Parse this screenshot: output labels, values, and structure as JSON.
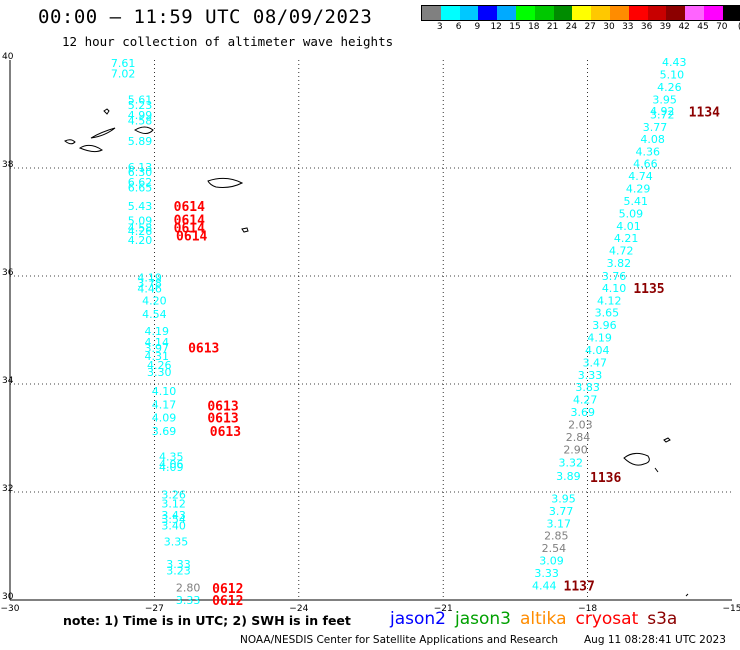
{
  "header": {
    "title": "00:00 – 11:59 UTC 08/09/2023",
    "subtitle": "12 hour collection of altimeter wave heights"
  },
  "color_scale": {
    "colors": [
      "#808080",
      "#00ffff",
      "#00c8ff",
      "#0000ff",
      "#00aaff",
      "#00ff00",
      "#00c800",
      "#008c00",
      "#ffff00",
      "#ffc800",
      "#ff8c00",
      "#ff0000",
      "#c80000",
      "#8c0000",
      "#ff64ff",
      "#ff00ff",
      "#000000"
    ],
    "labels": [
      "3",
      "6",
      "9",
      "12",
      "15",
      "18",
      "21",
      "24",
      "27",
      "30",
      "33",
      "36",
      "39",
      "42",
      "45",
      "70",
      "(ft)"
    ]
  },
  "map": {
    "lon_range": [
      -30,
      -15
    ],
    "lat_range": [
      30,
      40
    ],
    "lon_ticks": [
      "−30",
      "−27",
      "−24",
      "−21",
      "−18",
      "−15"
    ],
    "lat_ticks": [
      "40",
      "38",
      "36",
      "34",
      "32",
      "30"
    ],
    "track_west": [
      {
        "v": "7.61",
        "lon": -27.65,
        "lat": 39.94
      },
      {
        "v": "7.02",
        "lon": -27.65,
        "lat": 39.75
      },
      {
        "v": "5.61",
        "lon": -27.3,
        "lat": 39.27
      },
      {
        "v": "5.23",
        "lon": -27.3,
        "lat": 39.17
      },
      {
        "v": "4.99",
        "lon": -27.3,
        "lat": 38.98
      },
      {
        "v": "4.58",
        "lon": -27.3,
        "lat": 38.88
      },
      {
        "v": "5.89",
        "lon": -27.3,
        "lat": 38.5
      },
      {
        "v": "6.13",
        "lon": -27.3,
        "lat": 38.02
      },
      {
        "v": "6.30",
        "lon": -27.3,
        "lat": 37.93
      },
      {
        "v": "6.62",
        "lon": -27.3,
        "lat": 37.74
      },
      {
        "v": "6.65",
        "lon": -27.3,
        "lat": 37.64
      },
      {
        "v": "5.43",
        "lon": -27.3,
        "lat": 37.3
      },
      {
        "v": "5.09",
        "lon": -27.3,
        "lat": 37.03
      },
      {
        "v": "4.58",
        "lon": -27.3,
        "lat": 36.9
      },
      {
        "v": "4.26",
        "lon": -27.3,
        "lat": 36.83
      },
      {
        "v": "4.20",
        "lon": -27.3,
        "lat": 36.67
      },
      {
        "v": "4.19",
        "lon": -27.1,
        "lat": 35.97
      },
      {
        "v": "3.78",
        "lon": -27.1,
        "lat": 35.87
      },
      {
        "v": "4.46",
        "lon": -27.1,
        "lat": 35.77
      },
      {
        "v": "4.20",
        "lon": -27.0,
        "lat": 35.55
      },
      {
        "v": "4.54",
        "lon": -27.0,
        "lat": 35.3
      },
      {
        "v": "4.19",
        "lon": -26.95,
        "lat": 34.98
      },
      {
        "v": "4.14",
        "lon": -26.95,
        "lat": 34.78
      },
      {
        "v": "3.97",
        "lon": -26.95,
        "lat": 34.67
      },
      {
        "v": "4.31",
        "lon": -26.95,
        "lat": 34.52
      },
      {
        "v": "4.26",
        "lon": -26.9,
        "lat": 34.35
      },
      {
        "v": "3.30",
        "lon": -26.9,
        "lat": 34.22
      },
      {
        "v": "4.10",
        "lon": -26.8,
        "lat": 33.87
      },
      {
        "v": "4.17",
        "lon": -26.8,
        "lat": 33.62
      },
      {
        "v": "4.09",
        "lon": -26.8,
        "lat": 33.38
      },
      {
        "v": "3.69",
        "lon": -26.8,
        "lat": 33.13
      },
      {
        "v": "4.35",
        "lon": -26.65,
        "lat": 32.66
      },
      {
        "v": "4.06",
        "lon": -26.65,
        "lat": 32.52
      },
      {
        "v": "4.09",
        "lon": -26.65,
        "lat": 32.46
      },
      {
        "v": "3.26",
        "lon": -26.6,
        "lat": 31.95
      },
      {
        "v": "3.12",
        "lon": -26.6,
        "lat": 31.79
      },
      {
        "v": "3.43",
        "lon": -26.6,
        "lat": 31.57
      },
      {
        "v": "3.54",
        "lon": -26.6,
        "lat": 31.5
      },
      {
        "v": "3.40",
        "lon": -26.6,
        "lat": 31.38
      },
      {
        "v": "3.35",
        "lon": -26.55,
        "lat": 31.08
      },
      {
        "v": "3.33",
        "lon": -26.5,
        "lat": 30.67
      },
      {
        "v": "3.23",
        "lon": -26.5,
        "lat": 30.55
      },
      {
        "v": "3.33",
        "lon": -26.3,
        "lat": 30.0
      }
    ],
    "track_west_gray": [
      {
        "v": "2.80",
        "lon": -26.3,
        "lat": 30.23
      }
    ],
    "track_east": [
      {
        "v": "4.43",
        "lon": -16.2,
        "lat": 39.96
      },
      {
        "v": "5.10",
        "lon": -16.25,
        "lat": 39.73
      },
      {
        "v": "4.26",
        "lon": -16.3,
        "lat": 39.5
      },
      {
        "v": "3.95",
        "lon": -16.4,
        "lat": 39.27
      },
      {
        "v": "4.92",
        "lon": -16.45,
        "lat": 39.06
      },
      {
        "v": "3.72",
        "lon": -16.45,
        "lat": 38.99
      },
      {
        "v": "3.77",
        "lon": -16.6,
        "lat": 38.76
      },
      {
        "v": "4.08",
        "lon": -16.65,
        "lat": 38.54
      },
      {
        "v": "4.36",
        "lon": -16.75,
        "lat": 38.31
      },
      {
        "v": "4.66",
        "lon": -16.8,
        "lat": 38.08
      },
      {
        "v": "4.74",
        "lon": -16.9,
        "lat": 37.85
      },
      {
        "v": "4.29",
        "lon": -16.95,
        "lat": 37.62
      },
      {
        "v": "5.41",
        "lon": -17.0,
        "lat": 37.39
      },
      {
        "v": "5.09",
        "lon": -17.1,
        "lat": 37.16
      },
      {
        "v": "4.01",
        "lon": -17.15,
        "lat": 36.93
      },
      {
        "v": "4.21",
        "lon": -17.2,
        "lat": 36.7
      },
      {
        "v": "4.72",
        "lon": -17.3,
        "lat": 36.47
      },
      {
        "v": "3.82",
        "lon": -17.35,
        "lat": 36.24
      },
      {
        "v": "3.76",
        "lon": -17.45,
        "lat": 36.0
      },
      {
        "v": "4.10",
        "lon": -17.45,
        "lat": 35.78
      },
      {
        "v": "4.12",
        "lon": -17.55,
        "lat": 35.55
      },
      {
        "v": "3.65",
        "lon": -17.6,
        "lat": 35.32
      },
      {
        "v": "3.96",
        "lon": -17.65,
        "lat": 35.09
      },
      {
        "v": "4.19",
        "lon": -17.75,
        "lat": 34.86
      },
      {
        "v": "4.04",
        "lon": -17.8,
        "lat": 34.63
      },
      {
        "v": "3.47",
        "lon": -17.85,
        "lat": 34.4
      },
      {
        "v": "3.33",
        "lon": -17.95,
        "lat": 34.17
      },
      {
        "v": "3.83",
        "lon": -18.0,
        "lat": 33.94
      },
      {
        "v": "4.27",
        "lon": -18.05,
        "lat": 33.71
      },
      {
        "v": "3.69",
        "lon": -18.1,
        "lat": 33.48
      },
      {
        "v": "3.32",
        "lon": -18.35,
        "lat": 32.55
      },
      {
        "v": "3.89",
        "lon": -18.4,
        "lat": 32.3
      },
      {
        "v": "3.95",
        "lon": -18.5,
        "lat": 31.88
      },
      {
        "v": "3.77",
        "lon": -18.55,
        "lat": 31.65
      },
      {
        "v": "3.17",
        "lon": -18.6,
        "lat": 31.42
      },
      {
        "v": "3.09",
        "lon": -18.75,
        "lat": 30.73
      },
      {
        "v": "3.33",
        "lon": -18.85,
        "lat": 30.5
      },
      {
        "v": "4.44",
        "lon": -18.9,
        "lat": 30.27
      }
    ],
    "track_east_gray": [
      {
        "v": "2.03",
        "lon": -18.15,
        "lat": 33.25
      },
      {
        "v": "2.84",
        "lon": -18.2,
        "lat": 33.02
      },
      {
        "v": "2.90",
        "lon": -18.25,
        "lat": 32.79
      },
      {
        "v": "2.85",
        "lon": -18.65,
        "lat": 31.19
      },
      {
        "v": "2.54",
        "lon": -18.7,
        "lat": 30.96
      }
    ],
    "time_west": [
      {
        "t": "0614",
        "lon": -26.6,
        "lat": 37.3
      },
      {
        "t": "0614",
        "lon": -26.6,
        "lat": 37.05
      },
      {
        "t": "0614",
        "lon": -26.6,
        "lat": 36.9
      },
      {
        "t": "0614",
        "lon": -26.55,
        "lat": 36.75
      },
      {
        "t": "0613",
        "lon": -26.3,
        "lat": 34.68
      },
      {
        "t": "0613",
        "lon": -25.9,
        "lat": 33.6
      },
      {
        "t": "0613",
        "lon": -25.9,
        "lat": 33.38
      },
      {
        "t": "0613",
        "lon": -25.85,
        "lat": 33.13
      },
      {
        "t": "0612",
        "lon": -25.8,
        "lat": 30.22
      },
      {
        "t": "0612",
        "lon": -25.8,
        "lat": 30.0
      }
    ],
    "time_east": [
      {
        "t": "1134",
        "lon": -15.9,
        "lat": 39.05
      },
      {
        "t": "1135",
        "lon": -17.05,
        "lat": 35.78
      },
      {
        "t": "1136",
        "lon": -17.95,
        "lat": 32.28
      },
      {
        "t": "1137",
        "lon": -18.5,
        "lat": 30.27
      }
    ]
  },
  "footer": {
    "note": "note:  1) Time is in UTC;  2) SWH is in feet",
    "satellites": [
      {
        "name": "jason2",
        "color": "#0000ff"
      },
      {
        "name": "jason3",
        "color": "#00a000"
      },
      {
        "name": "altika",
        "color": "#ff8c00"
      },
      {
        "name": "cryosat",
        "color": "#ff0000"
      },
      {
        "name": "s3a",
        "color": "#8c0000"
      }
    ],
    "credit": "NOAA/NESDIS Center for Satellite Applications and Research",
    "timestamp": "Aug 11 08:28:41 UTC 2023"
  }
}
